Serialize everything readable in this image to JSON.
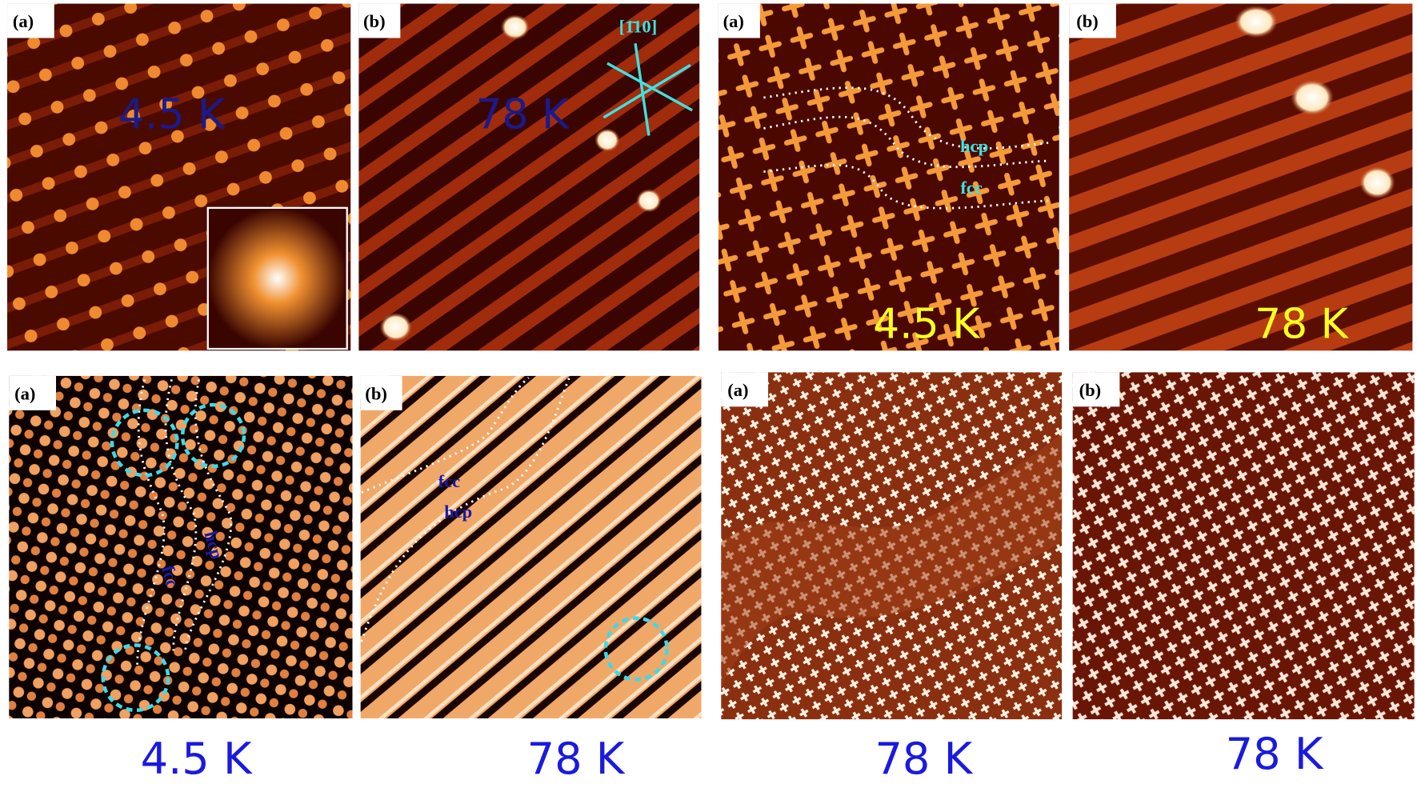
{
  "panels": [
    {
      "label": "(a)",
      "temperature": "4.5 K"
    },
    {
      "label": "(b)",
      "temperature": "78 K",
      "direction": "[1̄10]"
    },
    {
      "label": "(a)",
      "annotations": [
        "hcp",
        "fcc"
      ],
      "temperature": "4.5 K"
    },
    {
      "label": "(b)",
      "temperature": "78 K"
    },
    {
      "label": "(a)",
      "annotations": [
        "fcc",
        "hcp"
      ]
    },
    {
      "label": "(b)",
      "annotations": [
        "fcc",
        "hcp"
      ]
    },
    {
      "label": "(a)"
    },
    {
      "label": "(b)"
    }
  ],
  "captions": [
    "4.5 K",
    "78 K",
    "78 K",
    "78 K"
  ]
}
